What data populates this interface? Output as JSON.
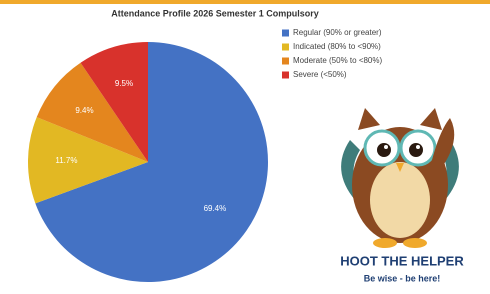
{
  "chart_data": {
    "type": "pie",
    "title": "Attendance Profile 2026 Semester 1 Compulsory",
    "categories": [
      "Regular (90% or greater)",
      "Indicated (80% to <90%)",
      "Moderate (50% to <80%)",
      "Severe (<50%)"
    ],
    "values": [
      69.4,
      11.7,
      9.4,
      9.5
    ],
    "value_labels": [
      "69.4%",
      "11.7%",
      "9.4%",
      "9.5%"
    ],
    "colors": [
      "#4472c4",
      "#e2b823",
      "#e4861e",
      "#d8322c"
    ],
    "legend": "top-right"
  },
  "mascot": {
    "name": "HOOT THE HELPER",
    "slogan": "Be wise - be here!"
  }
}
